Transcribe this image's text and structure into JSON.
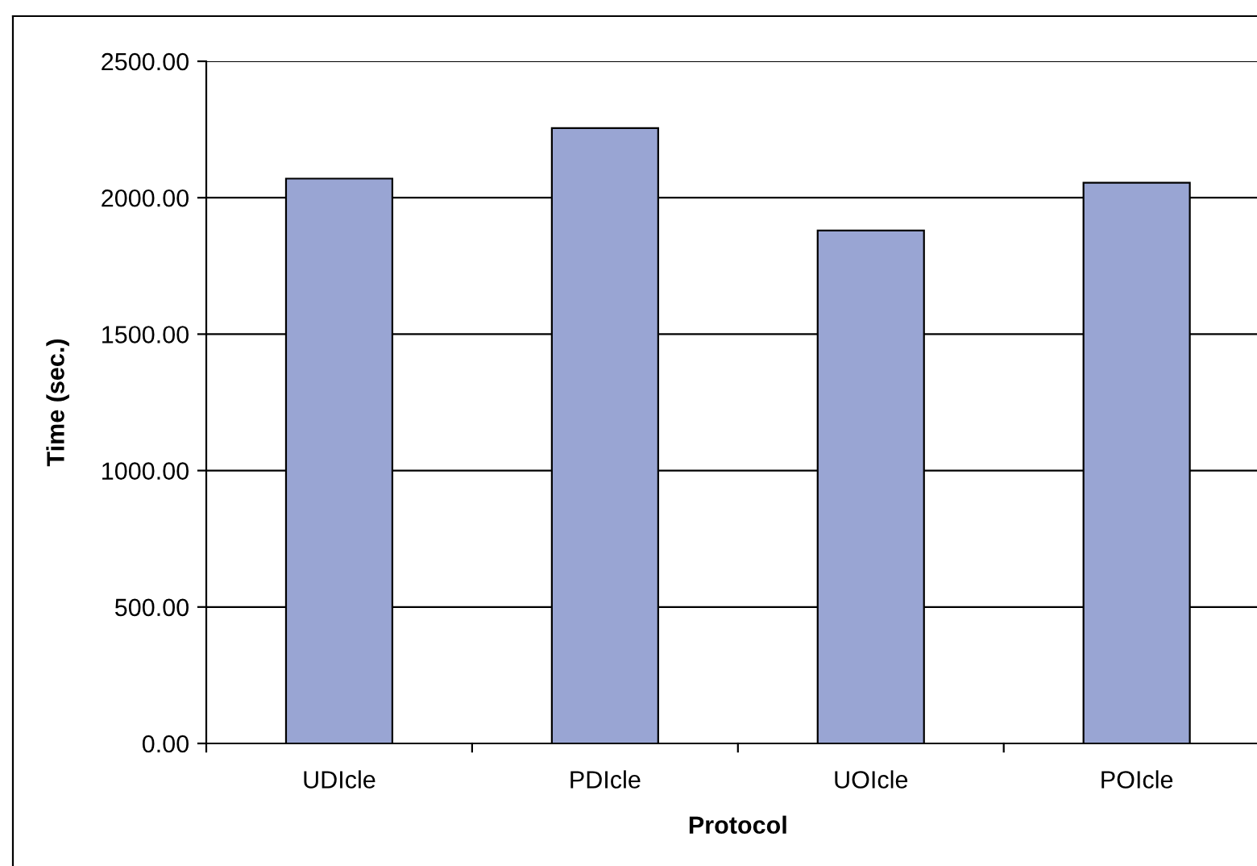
{
  "chart_data": {
    "type": "bar",
    "xlabel": "Protocol",
    "ylabel": "Time (sec.)",
    "categories": [
      "UDIcle",
      "PDIcle",
      "UOIcle",
      "POIcle"
    ],
    "values": [
      2070,
      2255,
      1880,
      2055
    ],
    "color": "#99a5d3",
    "ylim": [
      0,
      2500
    ],
    "yticks": [
      {
        "value": 0,
        "label": "0.00"
      },
      {
        "value": 500,
        "label": "500.00"
      },
      {
        "value": 1000,
        "label": "1000.00"
      },
      {
        "value": 1500,
        "label": "1500.00"
      },
      {
        "value": 2000,
        "label": "2000.00"
      },
      {
        "value": 2500,
        "label": "2500.00"
      }
    ],
    "grid": "y",
    "legend": false
  }
}
